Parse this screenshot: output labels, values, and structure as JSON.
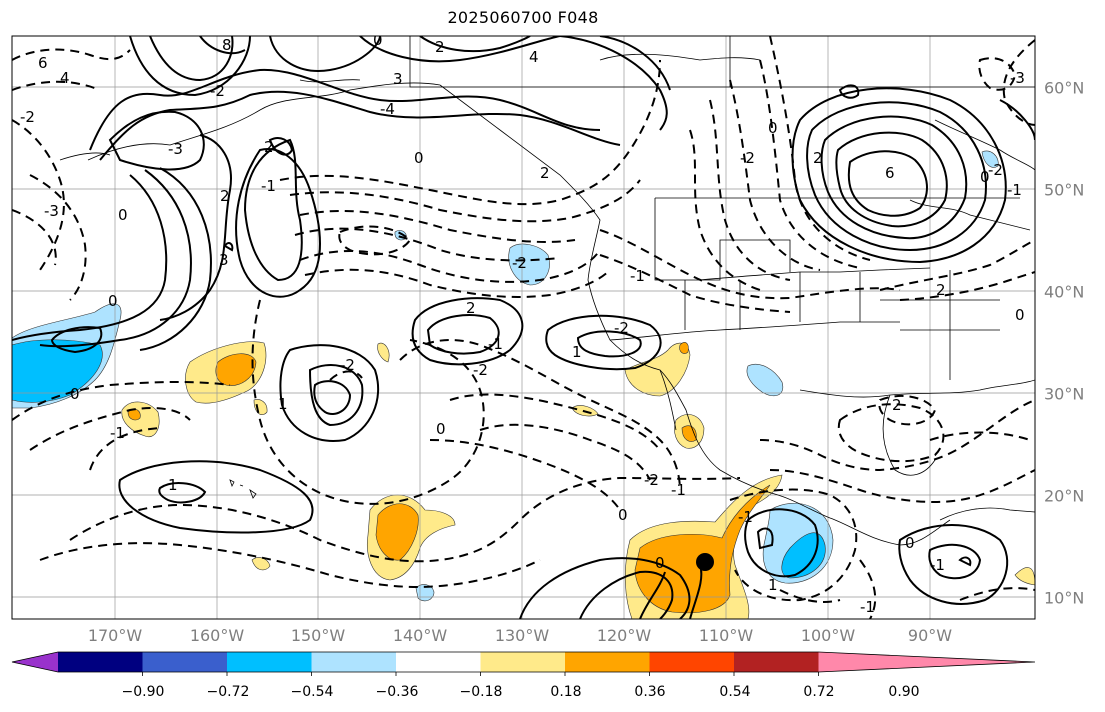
{
  "title": "2025060700 F048",
  "map": {
    "type": "filled-contour map with line contours",
    "lon_labels": [
      "170°W",
      "160°W",
      "150°W",
      "140°W",
      "130°W",
      "120°W",
      "110°W",
      "100°W",
      "90°W"
    ],
    "lat_labels": [
      "60°N",
      "50°N",
      "40°N",
      "30°N",
      "20°N",
      "10°N"
    ],
    "contour_labels": [
      {
        "text": "6"
      },
      {
        "text": "4"
      },
      {
        "text": "8"
      },
      {
        "text": "2"
      },
      {
        "text": "0"
      },
      {
        "text": "-2"
      },
      {
        "text": "3"
      },
      {
        "text": "4"
      },
      {
        "text": "-2"
      },
      {
        "text": "-4"
      },
      {
        "text": "-3"
      },
      {
        "text": "2"
      },
      {
        "text": "0"
      },
      {
        "text": "-3"
      },
      {
        "text": "2"
      },
      {
        "text": "-1"
      },
      {
        "text": "3"
      },
      {
        "text": "2"
      },
      {
        "text": "0"
      },
      {
        "text": "6"
      },
      {
        "text": "-2"
      },
      {
        "text": "0"
      },
      {
        "text": "0"
      },
      {
        "text": "-2"
      },
      {
        "text": "2"
      },
      {
        "text": "-2"
      },
      {
        "text": "-1"
      },
      {
        "text": "-3"
      },
      {
        "text": "1"
      },
      {
        "text": "-2"
      },
      {
        "text": "0"
      },
      {
        "text": "-2"
      },
      {
        "text": "1"
      },
      {
        "text": "2"
      },
      {
        "text": "2"
      },
      {
        "text": "1"
      },
      {
        "text": "-1"
      },
      {
        "text": "0"
      },
      {
        "text": "-1"
      },
      {
        "text": "0"
      },
      {
        "text": "-1"
      },
      {
        "text": "-2"
      },
      {
        "text": "-1"
      },
      {
        "text": "0"
      },
      {
        "text": "1"
      },
      {
        "text": "-1"
      },
      {
        "text": "0"
      },
      {
        "text": "-1"
      },
      {
        "text": "-2"
      },
      {
        "text": "-1"
      },
      {
        "text": "2"
      },
      {
        "text": "0"
      },
      {
        "text": "0"
      }
    ],
    "marker": "black dot"
  },
  "colorbar": {
    "colors": [
      "#9932cc",
      "#000080",
      "#3a5fcd",
      "#00bfff",
      "#aee3ff",
      "#ffffff",
      "#ffea8a",
      "#ffa500",
      "#ff4500",
      "#b22222",
      "#ff88aa"
    ],
    "labels": [
      "−0.90",
      "−0.72",
      "−0.54",
      "−0.36",
      "−0.18",
      "0.18",
      "0.36",
      "0.54",
      "0.72",
      "0.90"
    ]
  }
}
